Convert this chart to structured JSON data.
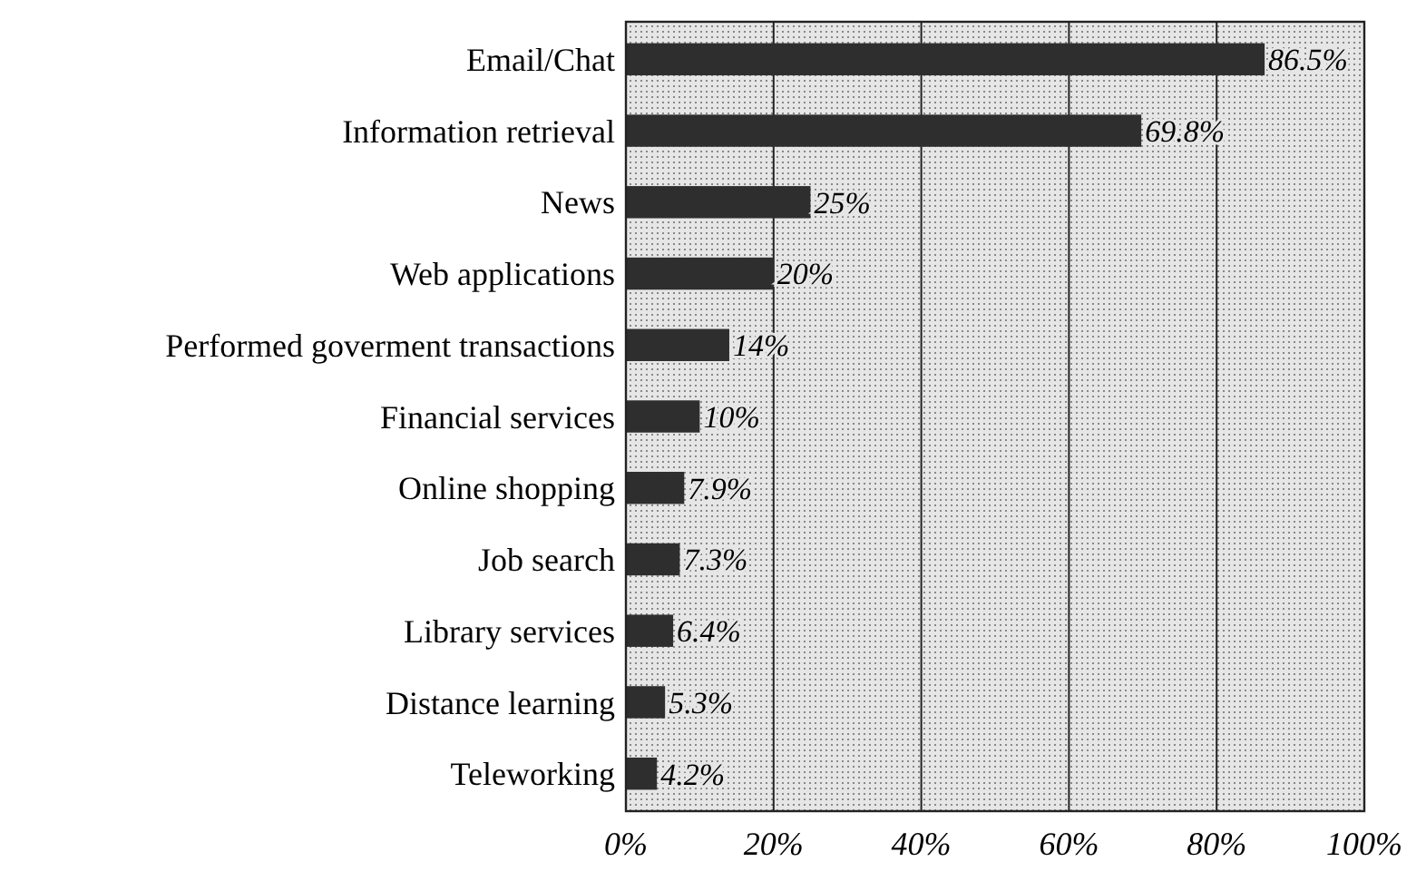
{
  "chart_data": {
    "type": "bar",
    "orientation": "horizontal",
    "categories": [
      "Email/Chat",
      "Information retrieval",
      "News",
      "Web applications",
      "Performed goverment transactions",
      "Financial services",
      "Online shopping",
      "Job search",
      "Library services",
      "Distance learning",
      "Teleworking"
    ],
    "values": [
      86.5,
      69.8,
      25,
      20,
      14,
      10,
      7.9,
      7.3,
      6.4,
      5.3,
      4.2
    ],
    "value_labels": [
      "86.5%",
      "69.8%",
      "25%",
      "20%",
      "14%",
      "10%",
      "7.9%",
      "7.3%",
      "6.4%",
      "5.3%",
      "4.2%"
    ],
    "color": "#2e2e2e",
    "xlim": [
      0,
      100
    ],
    "xticks": [
      {
        "value": 0,
        "label": "0%"
      },
      {
        "value": 20,
        "label": "20%"
      },
      {
        "value": 40,
        "label": "40%"
      },
      {
        "value": 60,
        "label": "60%"
      },
      {
        "value": 80,
        "label": "80%"
      },
      {
        "value": 100,
        "label": "100%"
      }
    ],
    "grid": "x"
  }
}
